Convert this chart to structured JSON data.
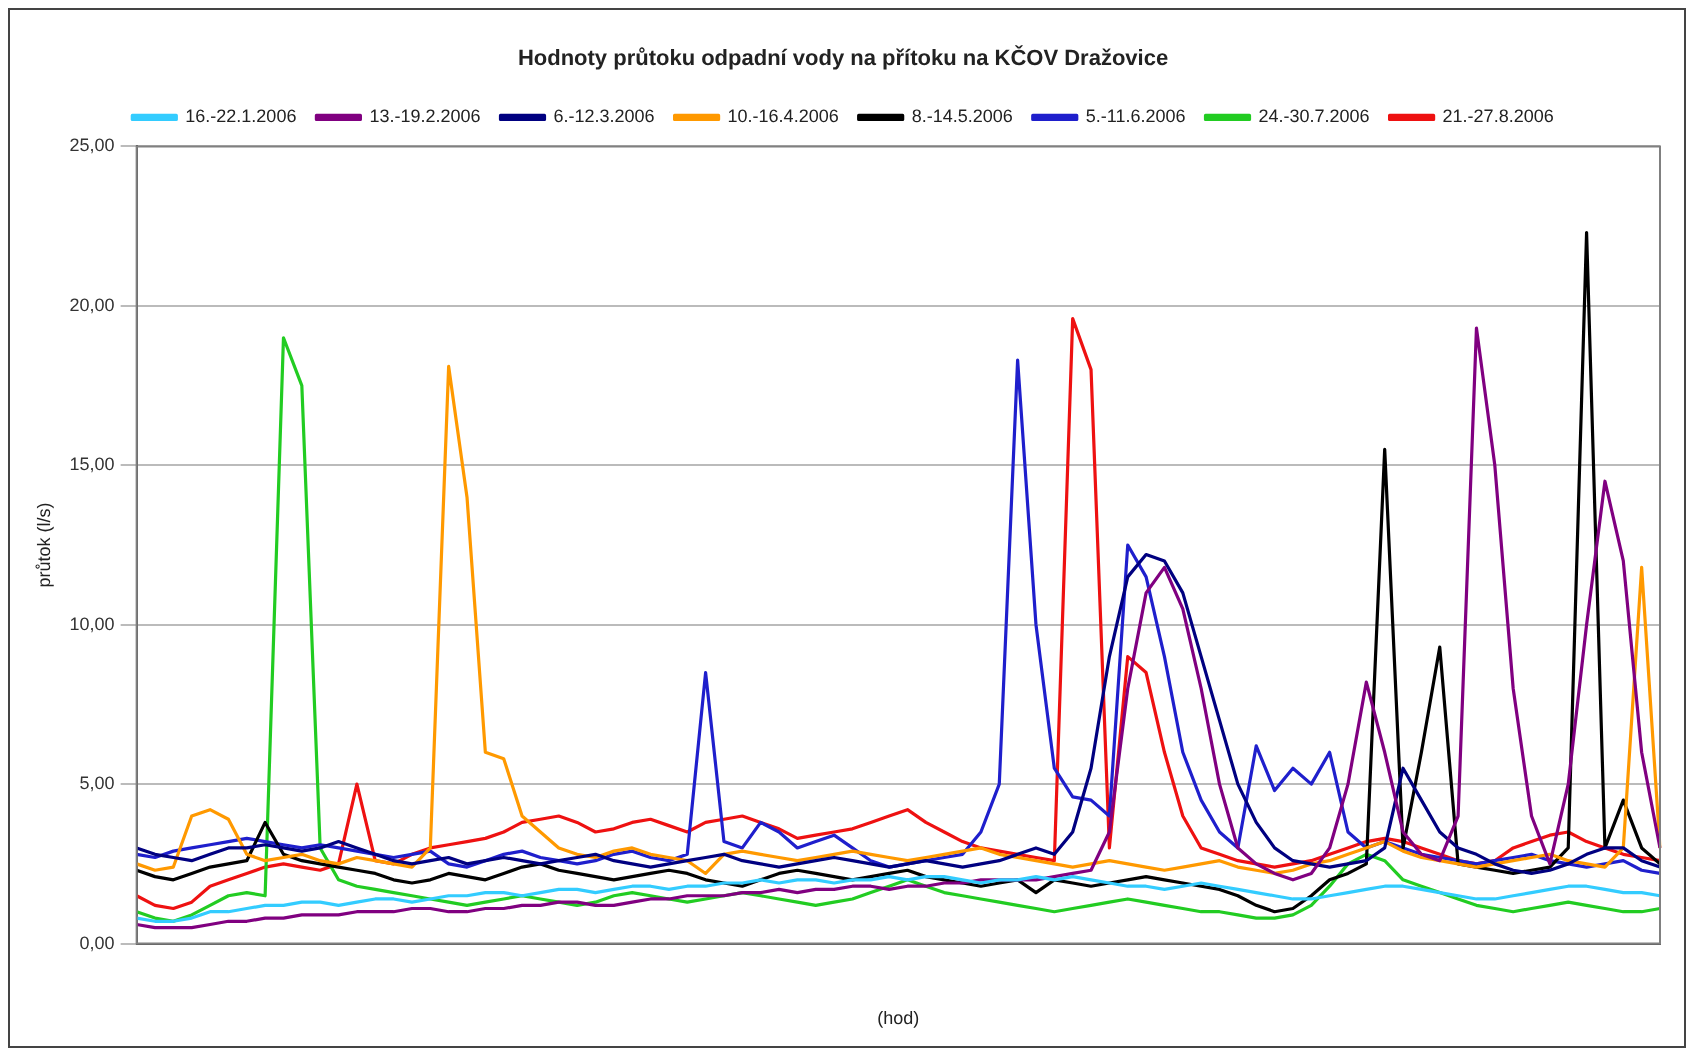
{
  "chart_data": {
    "type": "line",
    "title": "Hodnoty průtoku odpadní vody na přítoku na KČOV Dražovice",
    "xlabel": "(hod)",
    "ylabel": "průtok (l/s)",
    "categories": [
      null,
      null,
      null,
      null,
      null,
      null,
      null,
      null,
      null,
      null,
      null,
      null,
      null,
      null,
      null,
      null,
      null,
      null,
      null,
      null,
      null,
      null,
      null,
      null,
      null,
      null,
      null,
      null,
      null,
      null,
      null,
      null,
      null,
      null,
      null,
      null,
      null,
      null,
      null,
      null,
      null,
      null,
      null,
      null,
      null,
      null,
      null,
      null,
      null,
      null,
      null,
      null,
      null,
      null,
      null,
      null,
      null,
      null,
      null,
      null,
      null,
      null,
      null,
      null,
      null,
      null,
      null,
      null,
      null,
      null,
      null,
      null,
      null,
      null,
      null,
      null,
      null,
      null,
      null,
      null,
      null,
      null,
      null,
      null
    ],
    "ylim": [
      0,
      25
    ],
    "yticks": [
      {
        "value": 0,
        "label": "0,00"
      },
      {
        "value": 5,
        "label": "5,00"
      },
      {
        "value": 10,
        "label": "10,00"
      },
      {
        "value": 15,
        "label": "15,00"
      },
      {
        "value": 20,
        "label": "20,00"
      },
      {
        "value": 25,
        "label": "25,00"
      }
    ],
    "grid": "y",
    "legend": "top",
    "marker": "none",
    "line_style": "solid",
    "series": [
      {
        "name": "16.-22.1.2006",
        "color": "#33ccff",
        "values": [
          0.8,
          0.7,
          0.7,
          0.8,
          1.0,
          1.0,
          1.1,
          1.2,
          1.2,
          1.3,
          1.3,
          1.2,
          1.3,
          1.4,
          1.4,
          1.3,
          1.4,
          1.5,
          1.5,
          1.6,
          1.6,
          1.5,
          1.6,
          1.7,
          1.7,
          1.6,
          1.7,
          1.8,
          1.8,
          1.7,
          1.8,
          1.8,
          1.9,
          1.9,
          2.0,
          1.9,
          2.0,
          2.0,
          1.9,
          2.0,
          2.0,
          2.1,
          2.0,
          2.1,
          2.1,
          2.0,
          1.9,
          2.0,
          2.0,
          2.1,
          2.0,
          2.1,
          2.0,
          1.9,
          1.8,
          1.8,
          1.7,
          1.8,
          1.9,
          1.8,
          1.7,
          1.6,
          1.5,
          1.4,
          1.4,
          1.5,
          1.6,
          1.7,
          1.8,
          1.8,
          1.7,
          1.6,
          1.5,
          1.4,
          1.4,
          1.5,
          1.6,
          1.7,
          1.8,
          1.8,
          1.7,
          1.6,
          1.6,
          1.5
        ]
      },
      {
        "name": "13.-19.2.2006",
        "color": "#800080",
        "values": [
          0.6,
          0.5,
          0.5,
          0.5,
          0.6,
          0.7,
          0.7,
          0.8,
          0.8,
          0.9,
          0.9,
          0.9,
          1.0,
          1.0,
          1.0,
          1.1,
          1.1,
          1.0,
          1.0,
          1.1,
          1.1,
          1.2,
          1.2,
          1.3,
          1.3,
          1.2,
          1.2,
          1.3,
          1.4,
          1.4,
          1.5,
          1.5,
          1.5,
          1.6,
          1.6,
          1.7,
          1.6,
          1.7,
          1.7,
          1.8,
          1.8,
          1.7,
          1.8,
          1.8,
          1.9,
          1.9,
          2.0,
          2.0,
          2.0,
          2.0,
          2.1,
          2.2,
          2.3,
          3.5,
          8.0,
          11.0,
          11.8,
          10.5,
          8.0,
          5.0,
          3.0,
          2.5,
          2.2,
          2.0,
          2.2,
          3.0,
          5.0,
          8.2,
          6.0,
          3.5,
          2.8,
          2.6,
          4.0,
          19.3,
          15.0,
          8.0,
          4.0,
          2.5,
          5.0,
          10.0,
          14.5,
          12.0,
          6.0,
          3.0
        ]
      },
      {
        "name": "6.-12.3.2006",
        "color": "#000080",
        "values": [
          3.0,
          2.8,
          2.7,
          2.6,
          2.8,
          3.0,
          3.0,
          3.1,
          3.0,
          2.9,
          3.0,
          3.2,
          3.0,
          2.8,
          2.6,
          2.5,
          2.6,
          2.7,
          2.5,
          2.6,
          2.7,
          2.6,
          2.5,
          2.6,
          2.7,
          2.8,
          2.6,
          2.5,
          2.4,
          2.5,
          2.6,
          2.7,
          2.8,
          2.6,
          2.5,
          2.4,
          2.5,
          2.6,
          2.7,
          2.6,
          2.5,
          2.4,
          2.5,
          2.6,
          2.5,
          2.4,
          2.5,
          2.6,
          2.8,
          3.0,
          2.8,
          3.5,
          5.5,
          9.0,
          11.5,
          12.2,
          12.0,
          11.0,
          9.0,
          7.0,
          5.0,
          3.8,
          3.0,
          2.6,
          2.5,
          2.4,
          2.5,
          2.6,
          3.0,
          5.5,
          4.5,
          3.5,
          3.0,
          2.8,
          2.5,
          2.3,
          2.2,
          2.3,
          2.5,
          2.8,
          3.0,
          3.0,
          2.6,
          2.4
        ]
      },
      {
        "name": "10.-16.4.2006",
        "color": "#ff9900",
        "values": [
          2.5,
          2.3,
          2.4,
          4.0,
          4.2,
          3.9,
          2.8,
          2.6,
          2.7,
          2.8,
          2.6,
          2.5,
          2.7,
          2.6,
          2.5,
          2.4,
          3.0,
          18.1,
          14.0,
          6.0,
          5.8,
          4.0,
          3.5,
          3.0,
          2.8,
          2.7,
          2.9,
          3.0,
          2.8,
          2.7,
          2.6,
          2.2,
          2.8,
          2.9,
          2.8,
          2.7,
          2.6,
          2.7,
          2.8,
          2.9,
          2.8,
          2.7,
          2.6,
          2.7,
          2.8,
          2.9,
          3.0,
          2.8,
          2.7,
          2.6,
          2.5,
          2.4,
          2.5,
          2.6,
          2.5,
          2.4,
          2.3,
          2.4,
          2.5,
          2.6,
          2.4,
          2.3,
          2.2,
          2.3,
          2.5,
          2.6,
          2.8,
          3.0,
          3.2,
          2.9,
          2.7,
          2.6,
          2.5,
          2.4,
          2.5,
          2.6,
          2.7,
          2.8,
          2.6,
          2.5,
          2.4,
          3.0,
          11.8,
          3.0
        ]
      },
      {
        "name": "8.-14.5.2006",
        "color": "#000000",
        "values": [
          2.3,
          2.1,
          2.0,
          2.2,
          2.4,
          2.5,
          2.6,
          3.8,
          2.8,
          2.6,
          2.5,
          2.4,
          2.3,
          2.2,
          2.0,
          1.9,
          2.0,
          2.2,
          2.1,
          2.0,
          2.2,
          2.4,
          2.5,
          2.3,
          2.2,
          2.1,
          2.0,
          2.1,
          2.2,
          2.3,
          2.2,
          2.0,
          1.9,
          1.8,
          2.0,
          2.2,
          2.3,
          2.2,
          2.1,
          2.0,
          2.1,
          2.2,
          2.3,
          2.1,
          2.0,
          1.9,
          1.8,
          1.9,
          2.0,
          1.6,
          2.0,
          1.9,
          1.8,
          1.9,
          2.0,
          2.1,
          2.0,
          1.9,
          1.8,
          1.7,
          1.5,
          1.2,
          1.0,
          1.1,
          1.5,
          2.0,
          2.2,
          2.5,
          15.5,
          3.0,
          6.0,
          9.3,
          2.5,
          2.4,
          2.3,
          2.2,
          2.3,
          2.4,
          3.0,
          22.3,
          3.0,
          4.5,
          3.0,
          2.5
        ]
      },
      {
        "name": "5.-11.6.2006",
        "color": "#1f1fcc",
        "values": [
          2.8,
          2.7,
          2.9,
          3.0,
          3.1,
          3.2,
          3.3,
          3.2,
          3.1,
          3.0,
          3.1,
          3.0,
          2.9,
          2.8,
          2.7,
          2.8,
          2.9,
          2.5,
          2.4,
          2.6,
          2.8,
          2.9,
          2.7,
          2.6,
          2.5,
          2.6,
          2.8,
          2.9,
          2.7,
          2.6,
          2.8,
          8.5,
          3.2,
          3.0,
          3.8,
          3.5,
          3.0,
          3.2,
          3.4,
          3.0,
          2.6,
          2.4,
          2.5,
          2.6,
          2.7,
          2.8,
          3.5,
          5.0,
          18.3,
          10.0,
          5.5,
          4.6,
          4.5,
          4.0,
          12.5,
          11.5,
          9.0,
          6.0,
          4.5,
          3.5,
          3.0,
          6.2,
          4.8,
          5.5,
          5.0,
          6.0,
          3.5,
          3.0,
          3.2,
          3.0,
          2.8,
          2.7,
          2.6,
          2.5,
          2.6,
          2.7,
          2.8,
          2.6,
          2.5,
          2.4,
          2.5,
          2.6,
          2.3,
          2.2
        ]
      },
      {
        "name": "24.-30.7.2006",
        "color": "#22cc22",
        "values": [
          1.0,
          0.8,
          0.7,
          0.9,
          1.2,
          1.5,
          1.6,
          1.5,
          19.0,
          17.5,
          3.0,
          2.0,
          1.8,
          1.7,
          1.6,
          1.5,
          1.4,
          1.3,
          1.2,
          1.3,
          1.4,
          1.5,
          1.4,
          1.3,
          1.2,
          1.3,
          1.5,
          1.6,
          1.5,
          1.4,
          1.3,
          1.4,
          1.5,
          1.6,
          1.5,
          1.4,
          1.3,
          1.2,
          1.3,
          1.4,
          1.6,
          1.8,
          2.0,
          1.8,
          1.6,
          1.5,
          1.4,
          1.3,
          1.2,
          1.1,
          1.0,
          1.1,
          1.2,
          1.3,
          1.4,
          1.3,
          1.2,
          1.1,
          1.0,
          1.0,
          0.9,
          0.8,
          0.8,
          0.9,
          1.2,
          1.8,
          2.5,
          2.8,
          2.6,
          2.0,
          1.8,
          1.6,
          1.4,
          1.2,
          1.1,
          1.0,
          1.1,
          1.2,
          1.3,
          1.2,
          1.1,
          1.0,
          1.0,
          1.1
        ]
      },
      {
        "name": "21.-27.8.2006",
        "color": "#ee1111",
        "values": [
          1.5,
          1.2,
          1.1,
          1.3,
          1.8,
          2.0,
          2.2,
          2.4,
          2.5,
          2.4,
          2.3,
          2.5,
          5.0,
          2.6,
          2.5,
          2.8,
          3.0,
          3.1,
          3.2,
          3.3,
          3.5,
          3.8,
          3.9,
          4.0,
          3.8,
          3.5,
          3.6,
          3.8,
          3.9,
          3.7,
          3.5,
          3.8,
          3.9,
          4.0,
          3.8,
          3.6,
          3.3,
          3.4,
          3.5,
          3.6,
          3.8,
          4.0,
          4.2,
          3.8,
          3.5,
          3.2,
          3.0,
          2.9,
          2.8,
          2.7,
          2.6,
          19.6,
          18.0,
          3.0,
          9.0,
          8.5,
          6.0,
          4.0,
          3.0,
          2.8,
          2.6,
          2.5,
          2.4,
          2.5,
          2.6,
          2.8,
          3.0,
          3.2,
          3.3,
          3.2,
          3.0,
          2.8,
          2.6,
          2.5,
          2.6,
          3.0,
          3.2,
          3.4,
          3.5,
          3.2,
          3.0,
          2.8,
          2.7,
          2.6
        ]
      }
    ]
  }
}
